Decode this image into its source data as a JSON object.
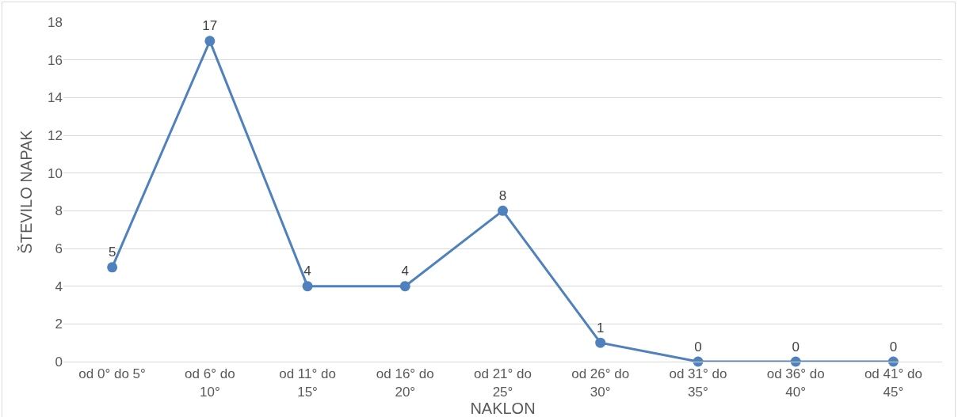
{
  "chart_data": {
    "type": "line",
    "xlabel": "NAKLON",
    "ylabel": "ŠTEVILO NAPAK",
    "categories": [
      "od 0° do 5°",
      "od 6° do 10°",
      "od 11° do 15°",
      "od 16° do 20°",
      "od 21° do 25°",
      "od 26° do 30°",
      "od 31° do 35°",
      "od 36° do 40°",
      "od 41° do 45°"
    ],
    "series": [
      {
        "color": "#4f81bd",
        "values": [
          5,
          17,
          4,
          4,
          8,
          1,
          0,
          0,
          0
        ]
      }
    ],
    "ylim": [
      0,
      18
    ],
    "yticks": [
      0,
      2,
      4,
      6,
      8,
      10,
      12,
      14,
      16,
      18
    ],
    "grid": "y",
    "marker": "circle",
    "line_style": "solid",
    "data_labels": true
  }
}
